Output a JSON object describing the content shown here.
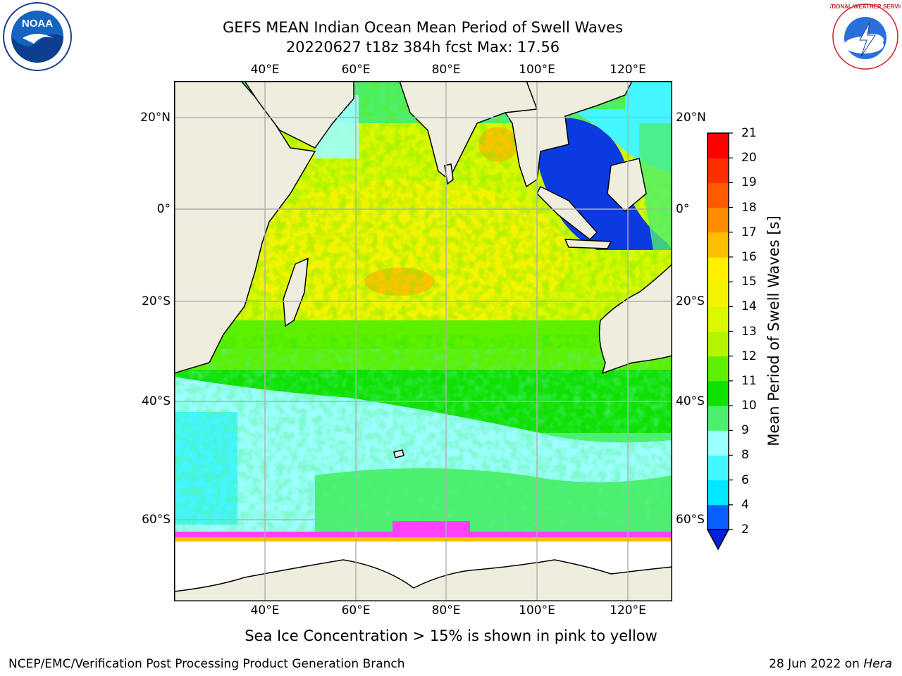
{
  "title_line1": "GEFS MEAN Indian Ocean Mean Period of Swell Waves",
  "title_line2": "20220627 t18z 384h fcst   Max: 17.56",
  "colorbar_label": "Mean Period of Swell Waves [s]",
  "footnote": "Sea Ice Concentration > 15% is shown in pink to yellow",
  "footer_left": "NCEP/EMC/Verification Post Processing Product Generation Branch",
  "footer_date": "28 Jun 2022 on",
  "footer_host": "Hera",
  "logos": {
    "left": "noaa-logo",
    "right": "nws-logo",
    "left_text": "NOAA",
    "right_text": "NATIONAL WEATHER SERVICE"
  },
  "map": {
    "lon_ticks": [
      "40°E",
      "60°E",
      "80°E",
      "100°E",
      "120°E"
    ],
    "lat_ticks_left": [
      "20°N",
      "20°S",
      "40°S",
      "60°S"
    ],
    "lat_ticks_right": [
      "20°N",
      "0°",
      "20°S",
      "40°S",
      "60°S"
    ],
    "lat_tick_left_zero": "0°",
    "colors": {
      "land": "#efedde",
      "grid": "#b0b0b0",
      "ice": "#ffffff"
    }
  },
  "colorbar": {
    "levels": [
      2,
      4,
      6,
      8,
      9,
      10,
      11,
      12,
      13,
      14,
      15,
      16,
      17,
      18,
      19,
      20,
      21
    ],
    "colors": [
      "#0a5eff",
      "#00e8ff",
      "#44f6ff",
      "#9dffff",
      "#4cf06e",
      "#0ee000",
      "#5ef000",
      "#b5f500",
      "#dcf800",
      "#f4f400",
      "#fff000",
      "#ffbe00",
      "#ff8c00",
      "#ff5a00",
      "#ff2e00",
      "#ff0000"
    ],
    "under_color": "#0020e0"
  }
}
